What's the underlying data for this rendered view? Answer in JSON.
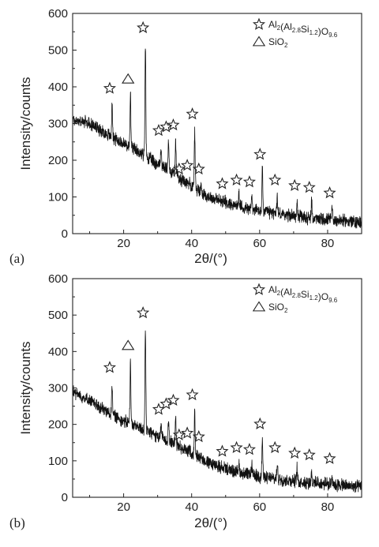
{
  "chart_data": [
    {
      "panel_label": "(a)",
      "type": "line",
      "xlabel": "2θ/(°)",
      "ylabel": "Intensity/counts",
      "xlim": [
        5,
        90
      ],
      "ylim": [
        0,
        600
      ],
      "x_ticks": [
        20,
        40,
        60,
        80
      ],
      "y_ticks": [
        0,
        100,
        200,
        300,
        400,
        500,
        600
      ],
      "legend": [
        {
          "marker": "star",
          "label_main": "Al",
          "label_rich": [
            [
              "Al",
              ""
            ],
            [
              "2",
              "sub"
            ],
            [
              "(Al",
              ""
            ],
            [
              "2.8",
              "sub"
            ],
            [
              "Si",
              ""
            ],
            [
              "1.2",
              "sub"
            ],
            [
              ")O",
              ""
            ],
            [
              "9.6",
              "sub"
            ]
          ]
        },
        {
          "marker": "triangle",
          "label_rich": [
            [
              "SiO",
              ""
            ],
            [
              "2",
              "sub"
            ]
          ]
        }
      ],
      "baseline": [
        [
          5,
          310
        ],
        [
          10,
          300
        ],
        [
          15,
          272
        ],
        [
          20,
          245
        ],
        [
          25,
          220
        ],
        [
          30,
          190
        ],
        [
          35,
          165
        ],
        [
          40,
          130
        ],
        [
          45,
          100
        ],
        [
          50,
          85
        ],
        [
          55,
          72
        ],
        [
          60,
          62
        ],
        [
          65,
          55
        ],
        [
          70,
          48
        ],
        [
          75,
          42
        ],
        [
          80,
          38
        ],
        [
          85,
          35
        ],
        [
          90,
          30
        ]
      ],
      "peaks": [
        {
          "x": 16.6,
          "y": 370,
          "marker": "star"
        },
        {
          "x": 22.0,
          "y": 395,
          "marker": "triangle"
        },
        {
          "x": 26.4,
          "y": 535,
          "marker": "star"
        },
        {
          "x": 31.0,
          "y": 255,
          "marker": "star"
        },
        {
          "x": 33.2,
          "y": 265,
          "marker": "star"
        },
        {
          "x": 35.3,
          "y": 270,
          "marker": "star"
        },
        {
          "x": 37.0,
          "y": 150,
          "marker": "star"
        },
        {
          "x": 39.4,
          "y": 160,
          "marker": "star"
        },
        {
          "x": 40.9,
          "y": 300,
          "marker": "star"
        },
        {
          "x": 42.8,
          "y": 150,
          "marker": "star"
        },
        {
          "x": 49.7,
          "y": 110,
          "marker": "star"
        },
        {
          "x": 53.9,
          "y": 120,
          "marker": "star"
        },
        {
          "x": 57.7,
          "y": 115,
          "marker": "star"
        },
        {
          "x": 60.8,
          "y": 190,
          "marker": "star"
        },
        {
          "x": 65.2,
          "y": 120,
          "marker": "star"
        },
        {
          "x": 71.0,
          "y": 105,
          "marker": "star"
        },
        {
          "x": 75.3,
          "y": 100,
          "marker": "star"
        },
        {
          "x": 81.3,
          "y": 85,
          "marker": "star"
        }
      ]
    },
    {
      "panel_label": "(b)",
      "type": "line",
      "xlabel": "2θ/(°)",
      "ylabel": "Intensity/counts",
      "xlim": [
        5,
        90
      ],
      "ylim": [
        0,
        600
      ],
      "x_ticks": [
        20,
        40,
        60,
        80
      ],
      "y_ticks": [
        0,
        100,
        200,
        300,
        400,
        500,
        600
      ],
      "legend": [
        {
          "marker": "star",
          "label_rich": [
            [
              "Al",
              ""
            ],
            [
              "2",
              "sub"
            ],
            [
              "(Al",
              ""
            ],
            [
              "2.8",
              "sub"
            ],
            [
              "Si",
              ""
            ],
            [
              "1.2",
              "sub"
            ],
            [
              ")O",
              ""
            ],
            [
              "9.6",
              "sub"
            ]
          ]
        },
        {
          "marker": "triangle",
          "label_rich": [
            [
              "SiO",
              ""
            ],
            [
              "2",
              "sub"
            ]
          ]
        }
      ],
      "baseline": [
        [
          5,
          290
        ],
        [
          10,
          265
        ],
        [
          15,
          235
        ],
        [
          20,
          210
        ],
        [
          25,
          190
        ],
        [
          30,
          168
        ],
        [
          35,
          148
        ],
        [
          40,
          120
        ],
        [
          45,
          95
        ],
        [
          50,
          78
        ],
        [
          55,
          66
        ],
        [
          60,
          57
        ],
        [
          65,
          50
        ],
        [
          70,
          45
        ],
        [
          75,
          40
        ],
        [
          80,
          36
        ],
        [
          85,
          32
        ],
        [
          90,
          28
        ]
      ],
      "peaks": [
        {
          "x": 16.6,
          "y": 330,
          "marker": "star"
        },
        {
          "x": 22.0,
          "y": 390,
          "marker": "triangle"
        },
        {
          "x": 26.4,
          "y": 480,
          "marker": "star"
        },
        {
          "x": 31.0,
          "y": 215,
          "marker": "star"
        },
        {
          "x": 33.2,
          "y": 230,
          "marker": "star"
        },
        {
          "x": 35.3,
          "y": 240,
          "marker": "star"
        },
        {
          "x": 37.0,
          "y": 145,
          "marker": "star"
        },
        {
          "x": 39.4,
          "y": 150,
          "marker": "star"
        },
        {
          "x": 40.9,
          "y": 255,
          "marker": "star"
        },
        {
          "x": 42.8,
          "y": 140,
          "marker": "star"
        },
        {
          "x": 49.7,
          "y": 100,
          "marker": "star"
        },
        {
          "x": 53.9,
          "y": 110,
          "marker": "star"
        },
        {
          "x": 57.7,
          "y": 105,
          "marker": "star"
        },
        {
          "x": 60.8,
          "y": 175,
          "marker": "star"
        },
        {
          "x": 65.2,
          "y": 110,
          "marker": "star"
        },
        {
          "x": 71.0,
          "y": 95,
          "marker": "star"
        },
        {
          "x": 75.3,
          "y": 90,
          "marker": "star"
        },
        {
          "x": 81.3,
          "y": 80,
          "marker": "star"
        }
      ]
    }
  ]
}
